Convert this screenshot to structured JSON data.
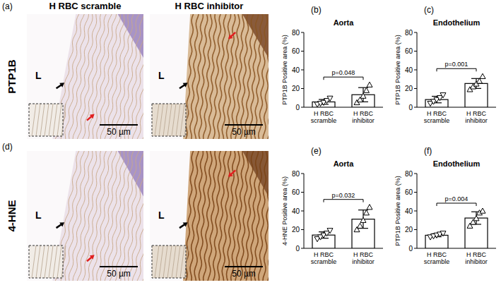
{
  "figure": {
    "columns": [
      "H RBC scramble",
      "H RBC inhibitor"
    ],
    "rows": [
      {
        "letter": "(a)",
        "label": "PTP1B"
      },
      {
        "letter": "(d)",
        "label": "4-HNE"
      }
    ],
    "lumen": "L",
    "scale_bar": "50 µm"
  },
  "chart_data": [
    {
      "type": "bar",
      "panel": "(b)",
      "title": "Aorta",
      "ylabel": "PTP1B Positive area (%)",
      "categories": [
        "H RBC scramble",
        "H RBC inhibitor"
      ],
      "values": [
        5.7,
        13.4
      ],
      "errors": [
        2.6,
        7.6
      ],
      "points": [
        [
          3,
          4,
          5,
          7,
          9.5
        ],
        [
          5,
          8,
          12,
          18,
          24
        ]
      ],
      "annotation": "p=0.048",
      "color": "#ffffff",
      "marker": "triangle",
      "ylim": [
        0,
        80
      ],
      "yticks": [
        0,
        20,
        40,
        60,
        80
      ]
    },
    {
      "type": "bar",
      "panel": "(c)",
      "title": "Endothelium",
      "ylabel": "PTP1B Positive area (%)",
      "categories": [
        "H RBC scramble",
        "H RBC inhibitor"
      ],
      "values": [
        8.2,
        25.4
      ],
      "errors": [
        3.5,
        5.3
      ],
      "points": [
        [
          4,
          6,
          8,
          10,
          13
        ],
        [
          19,
          22,
          25,
          28,
          33
        ]
      ],
      "annotation": "p=0.001",
      "color": "#ffffff",
      "marker": "triangle",
      "ylim": [
        0,
        80
      ],
      "yticks": [
        0,
        20,
        40,
        60,
        80
      ]
    },
    {
      "type": "bar",
      "panel": "(e)",
      "title": "Aorta",
      "ylabel": "4-HNE Positive area (%)",
      "categories": [
        "H RBC scramble",
        "H RBC inhibitor"
      ],
      "values": [
        14.2,
        31.2
      ],
      "errors": [
        3.4,
        9.8
      ],
      "points": [
        [
          10,
          12,
          14,
          16,
          19
        ],
        [
          20,
          24,
          30,
          38,
          44
        ]
      ],
      "annotation": "p=0.032",
      "color": "#ffffff",
      "marker": "triangle",
      "ylim": [
        0,
        80
      ],
      "yticks": [
        0,
        20,
        40,
        60,
        80
      ]
    },
    {
      "type": "bar",
      "panel": "(f)",
      "title": "Endothelium",
      "ylabel": "PTP1B Positive area (%)",
      "categories": [
        "H RBC scramble",
        "H RBC inhibitor"
      ],
      "values": [
        14,
        32.4
      ],
      "errors": [
        1.6,
        6.7
      ],
      "points": [
        [
          12,
          13,
          14,
          15,
          16
        ],
        [
          24,
          28,
          32,
          38,
          40
        ]
      ],
      "annotation": "p=0.004",
      "color": "#ffffff",
      "marker": "triangle",
      "ylim": [
        0,
        80
      ],
      "yticks": [
        0,
        20,
        40,
        60,
        80
      ]
    }
  ]
}
